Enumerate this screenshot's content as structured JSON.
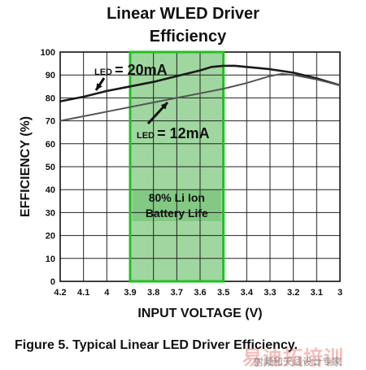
{
  "figure": {
    "title_line1": "Linear WLED Driver",
    "title_line2": "Efficiency",
    "caption": "Figure 5.  Typical Linear LED Driver Efficiency.",
    "watermark_main": "易迪拓培训",
    "watermark_sub": "射频和天线设计专家"
  },
  "chart_data": {
    "type": "line",
    "title": "Linear WLED Driver Efficiency",
    "xlabel": "INPUT VOLTAGE (V)",
    "ylabel": "EFFICIENCY (%)",
    "x_ticks": [
      "4.2",
      "4.1",
      "4",
      "3.9",
      "3.8",
      "3.7",
      "3.6",
      "3.5",
      "3.4",
      "3.3",
      "3.2",
      "3.1",
      "3"
    ],
    "y_ticks": [
      "0",
      "10",
      "20",
      "30",
      "40",
      "50",
      "60",
      "70",
      "80",
      "90",
      "100"
    ],
    "xlim": [
      4.2,
      3.0
    ],
    "ylim": [
      0,
      100
    ],
    "x_reversed": true,
    "grid": true,
    "shaded_region": {
      "x_from": 3.9,
      "x_to": 3.5,
      "label_line1": "80% Li Ion",
      "label_line2": "Battery Life",
      "fill_color": "#8fd08f",
      "border_color": "#22c022"
    },
    "series": [
      {
        "name": "LED = 20mA",
        "label_prefix": "LED",
        "label_value": "= 20mA",
        "color": "#1a1a1a",
        "x": [
          4.2,
          4.1,
          4.0,
          3.9,
          3.8,
          3.7,
          3.6,
          3.55,
          3.5,
          3.45,
          3.4,
          3.3,
          3.2,
          3.1,
          3.0
        ],
        "y": [
          78.5,
          80.5,
          83,
          85,
          87,
          89.5,
          92,
          93.5,
          94,
          94,
          93.5,
          92.5,
          91,
          88.5,
          85.5
        ]
      },
      {
        "name": "LED = 12mA",
        "label_prefix": "LED",
        "label_value": "= 12mA",
        "color": "#555555",
        "x": [
          4.2,
          4.1,
          4.0,
          3.9,
          3.8,
          3.7,
          3.6,
          3.5,
          3.4,
          3.3,
          3.25,
          3.2,
          3.1,
          3.0
        ],
        "y": [
          70,
          72,
          74,
          76,
          78,
          80,
          82,
          84,
          86.5,
          89.5,
          90.5,
          90,
          88,
          85.5
        ]
      }
    ]
  }
}
